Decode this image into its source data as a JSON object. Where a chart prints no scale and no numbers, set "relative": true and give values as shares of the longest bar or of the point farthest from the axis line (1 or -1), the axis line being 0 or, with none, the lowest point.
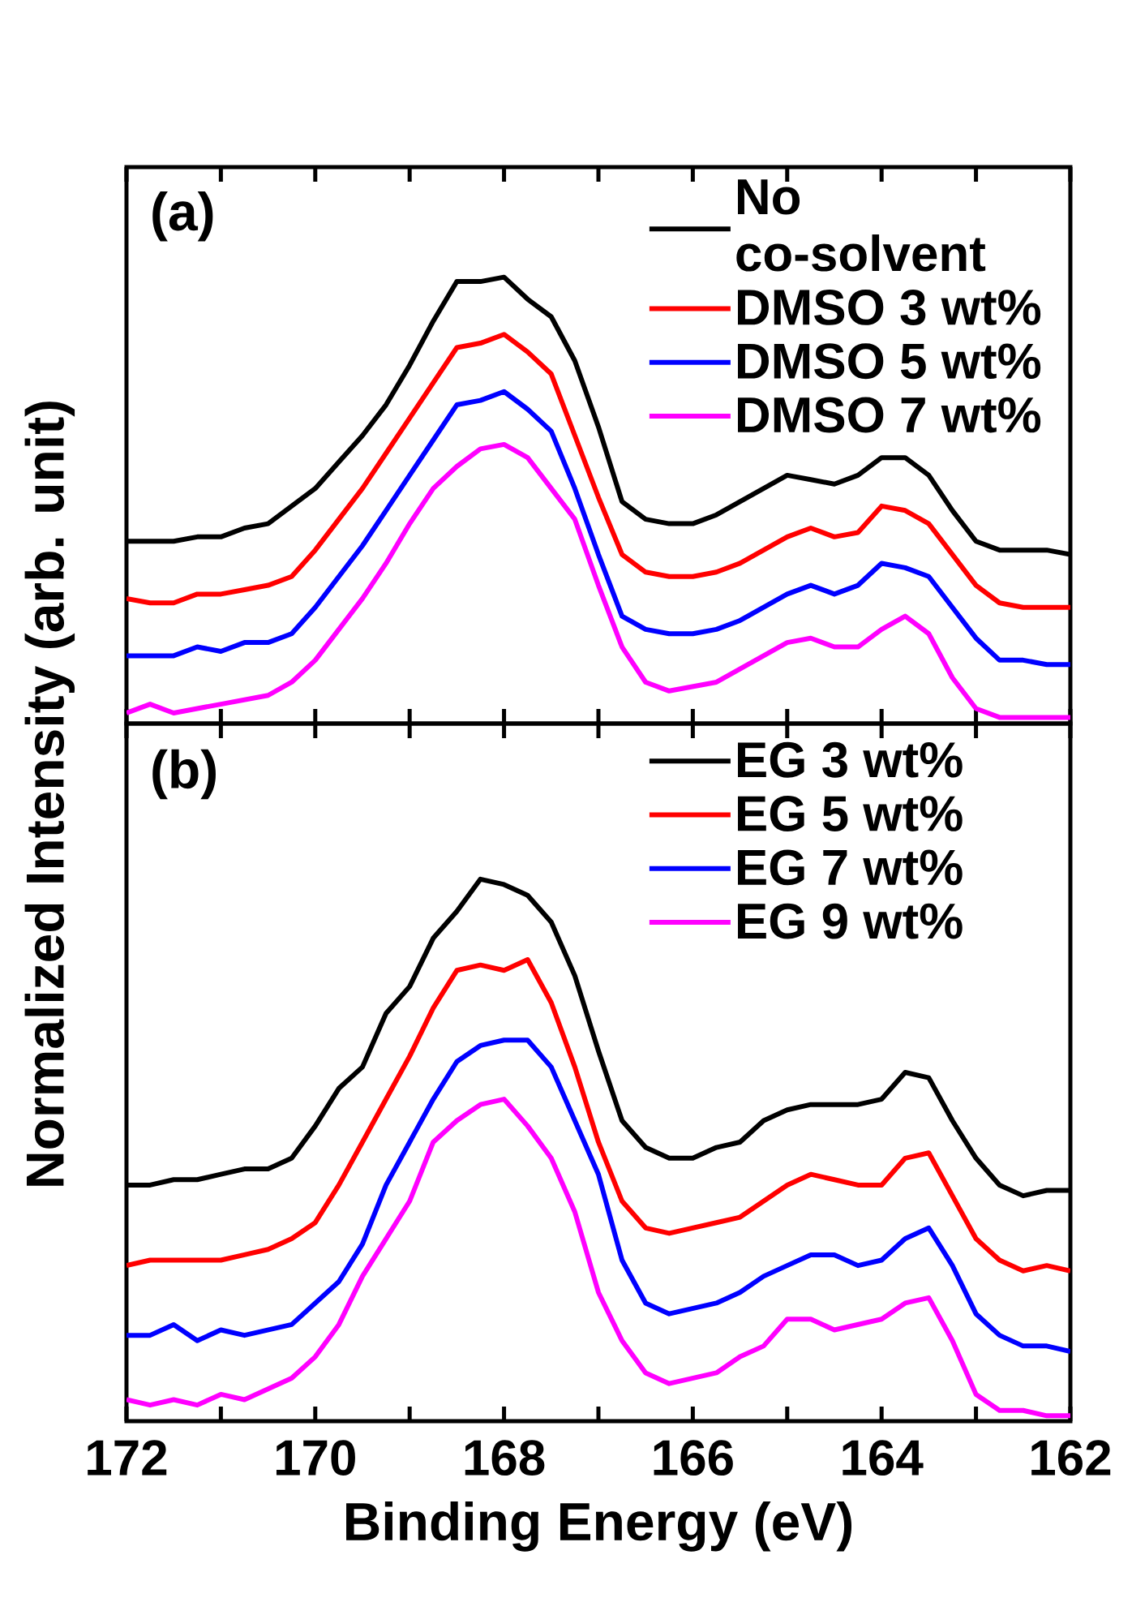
{
  "chart_data": [
    {
      "type": "line",
      "relative": true,
      "ylabel": "Normalized Intensity (arb. unit)",
      "annotations": [
        "(a)"
      ],
      "legend": "top right",
      "tick_labels": false,
      "xlim": [
        172,
        162
      ],
      "xticks": [
        172,
        {
          "value": 171,
          "label": null
        },
        170,
        {
          "value": 169,
          "label": null
        },
        168,
        {
          "value": 167,
          "label": null
        },
        166,
        {
          "value": 165,
          "label": null
        },
        164,
        {
          "value": 163,
          "label": null
        },
        162
      ],
      "x": [
        172,
        171.75,
        171.5,
        171.25,
        171,
        170.75,
        170.5,
        170.25,
        170,
        169.75,
        169.5,
        169.25,
        169,
        168.75,
        168.5,
        168.25,
        168,
        167.75,
        167.5,
        167.25,
        167,
        166.75,
        166.5,
        166.25,
        166,
        165.75,
        165.5,
        165.25,
        165,
        164.75,
        164.5,
        164.25,
        164,
        163.75,
        163.5,
        163.25,
        163,
        162.75,
        162.5,
        162.25,
        162
      ],
      "series": [
        {
          "name": "No co-solvent",
          "color": "#000000",
          "values": [
            0.4,
            0.4,
            0.4,
            0.41,
            0.41,
            0.43,
            0.44,
            0.48,
            0.52,
            0.58,
            0.64,
            0.71,
            0.8,
            0.9,
            0.99,
            0.99,
            1.0,
            0.95,
            0.91,
            0.81,
            0.66,
            0.49,
            0.45,
            0.44,
            0.44,
            0.46,
            0.49,
            0.52,
            0.55,
            0.54,
            0.53,
            0.55,
            0.59,
            0.59,
            0.55,
            0.47,
            0.4,
            0.38,
            0.38,
            0.38,
            0.37
          ]
        },
        {
          "name": "DMSO 3 wt%",
          "color": "#ff0000",
          "values": [
            0.27,
            0.26,
            0.26,
            0.28,
            0.28,
            0.29,
            0.3,
            0.32,
            0.38,
            0.45,
            0.52,
            0.6,
            0.68,
            0.76,
            0.84,
            0.85,
            0.87,
            0.83,
            0.78,
            0.64,
            0.5,
            0.37,
            0.33,
            0.32,
            0.32,
            0.33,
            0.35,
            0.38,
            0.41,
            0.43,
            0.41,
            0.42,
            0.48,
            0.47,
            0.44,
            0.37,
            0.3,
            0.26,
            0.25,
            0.25,
            0.25
          ]
        },
        {
          "name": "DMSO 5 wt%",
          "color": "#0000ff",
          "values": [
            0.14,
            0.14,
            0.14,
            0.16,
            0.15,
            0.17,
            0.17,
            0.19,
            0.25,
            0.32,
            0.39,
            0.47,
            0.55,
            0.63,
            0.71,
            0.72,
            0.74,
            0.7,
            0.65,
            0.52,
            0.37,
            0.23,
            0.2,
            0.19,
            0.19,
            0.2,
            0.22,
            0.25,
            0.28,
            0.3,
            0.28,
            0.3,
            0.35,
            0.34,
            0.32,
            0.25,
            0.18,
            0.13,
            0.13,
            0.12,
            0.12
          ]
        },
        {
          "name": "DMSO 7 wt%",
          "color": "#ff00ff",
          "values": [
            0.01,
            0.03,
            0.01,
            0.02,
            0.03,
            0.04,
            0.05,
            0.08,
            0.13,
            0.2,
            0.27,
            0.35,
            0.44,
            0.52,
            0.57,
            0.61,
            0.62,
            0.59,
            0.52,
            0.45,
            0.3,
            0.16,
            0.08,
            0.06,
            0.07,
            0.08,
            0.11,
            0.14,
            0.17,
            0.18,
            0.16,
            0.16,
            0.2,
            0.23,
            0.19,
            0.09,
            0.02,
            0.0,
            0.0,
            0.0,
            0.0
          ]
        }
      ]
    },
    {
      "type": "line",
      "relative": true,
      "xlabel": "Binding Energy (eV)",
      "annotations": [
        "(b)"
      ],
      "legend": "top right",
      "tick_labels": "x",
      "xlim": [
        172,
        162
      ],
      "xticks": [
        172,
        {
          "value": 171,
          "label": null
        },
        170,
        {
          "value": 169,
          "label": null
        },
        168,
        {
          "value": 167,
          "label": null
        },
        166,
        {
          "value": 165,
          "label": null
        },
        164,
        {
          "value": 163,
          "label": null
        },
        162
      ],
      "x": [
        172,
        171.75,
        171.5,
        171.25,
        171,
        170.75,
        170.5,
        170.25,
        170,
        169.75,
        169.5,
        169.25,
        169,
        168.75,
        168.5,
        168.25,
        168,
        167.75,
        167.5,
        167.25,
        167,
        166.75,
        166.5,
        166.25,
        166,
        165.75,
        165.5,
        165.25,
        165,
        164.75,
        164.5,
        164.25,
        164,
        163.75,
        163.5,
        163.25,
        163,
        162.75,
        162.5,
        162.25,
        162
      ],
      "series": [
        {
          "name": "EG 3 wt%",
          "color": "#000000",
          "values": [
            0.43,
            0.43,
            0.44,
            0.44,
            0.45,
            0.46,
            0.46,
            0.48,
            0.54,
            0.61,
            0.65,
            0.75,
            0.8,
            0.89,
            0.94,
            1.0,
            0.99,
            0.97,
            0.92,
            0.82,
            0.68,
            0.55,
            0.5,
            0.48,
            0.48,
            0.5,
            0.51,
            0.55,
            0.57,
            0.58,
            0.58,
            0.58,
            0.59,
            0.64,
            0.63,
            0.55,
            0.48,
            0.43,
            0.41,
            0.42,
            0.42
          ]
        },
        {
          "name": "EG 5 wt%",
          "color": "#ff0000",
          "values": [
            0.28,
            0.29,
            0.29,
            0.29,
            0.29,
            0.3,
            0.31,
            0.33,
            0.36,
            0.43,
            0.51,
            0.59,
            0.67,
            0.76,
            0.83,
            0.84,
            0.83,
            0.85,
            0.77,
            0.65,
            0.51,
            0.4,
            0.35,
            0.34,
            0.35,
            0.36,
            0.37,
            0.4,
            0.43,
            0.45,
            0.44,
            0.43,
            0.43,
            0.48,
            0.49,
            0.41,
            0.33,
            0.29,
            0.27,
            0.28,
            0.27
          ]
        },
        {
          "name": "EG 7 wt%",
          "color": "#0000ff",
          "values": [
            0.15,
            0.15,
            0.17,
            0.14,
            0.16,
            0.15,
            0.16,
            0.17,
            0.21,
            0.25,
            0.32,
            0.43,
            0.51,
            0.59,
            0.66,
            0.69,
            0.7,
            0.7,
            0.65,
            0.55,
            0.45,
            0.29,
            0.21,
            0.19,
            0.2,
            0.21,
            0.23,
            0.26,
            0.28,
            0.3,
            0.3,
            0.28,
            0.29,
            0.33,
            0.35,
            0.28,
            0.19,
            0.15,
            0.13,
            0.13,
            0.12
          ]
        },
        {
          "name": "EG 9 wt%",
          "color": "#ff00ff",
          "values": [
            0.03,
            0.02,
            0.03,
            0.02,
            0.04,
            0.03,
            0.05,
            0.07,
            0.11,
            0.17,
            0.26,
            0.33,
            0.4,
            0.51,
            0.55,
            0.58,
            0.59,
            0.54,
            0.48,
            0.38,
            0.23,
            0.14,
            0.08,
            0.06,
            0.07,
            0.08,
            0.11,
            0.13,
            0.18,
            0.18,
            0.16,
            0.17,
            0.18,
            0.21,
            0.22,
            0.14,
            0.04,
            0.01,
            0.01,
            0.0,
            0.0
          ]
        }
      ]
    }
  ]
}
